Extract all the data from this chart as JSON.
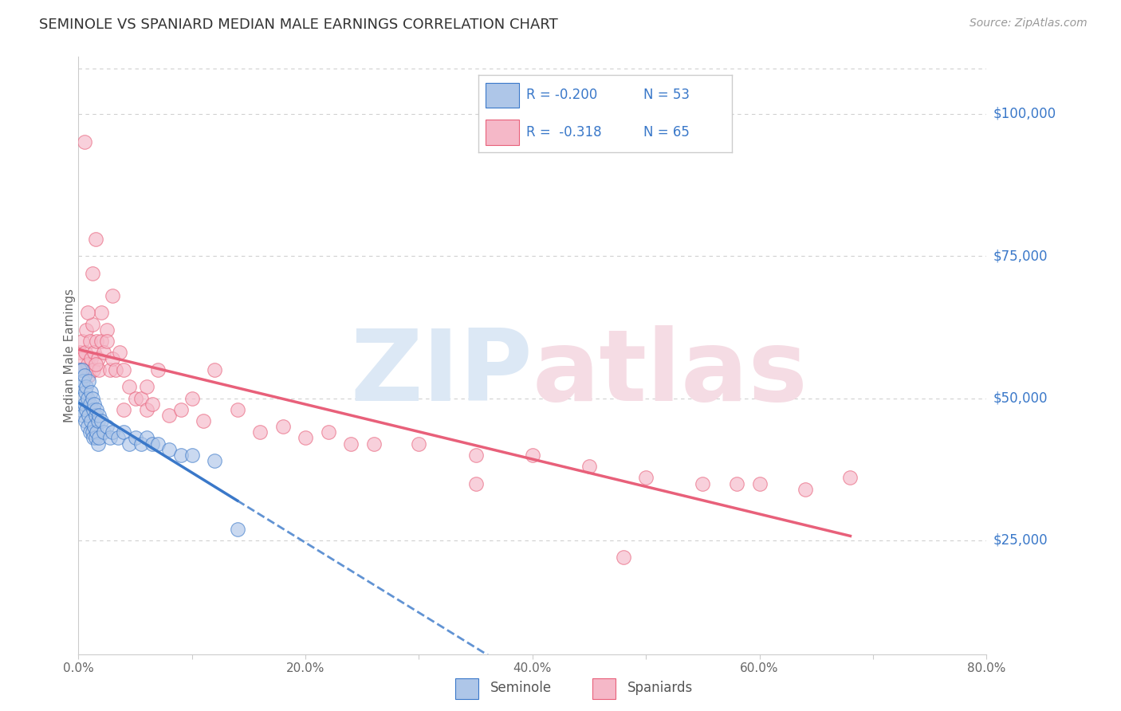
{
  "title": "SEMINOLE VS SPANIARD MEDIAN MALE EARNINGS CORRELATION CHART",
  "source": "Source: ZipAtlas.com",
  "ylabel": "Median Male Earnings",
  "ytick_labels": [
    "$25,000",
    "$50,000",
    "$75,000",
    "$100,000"
  ],
  "ytick_values": [
    25000,
    50000,
    75000,
    100000
  ],
  "ylim": [
    5000,
    110000
  ],
  "xlim": [
    0.0,
    0.8
  ],
  "seminole_color": "#aec6e8",
  "spaniard_color": "#f5b8c8",
  "seminole_line_color": "#3a78c9",
  "spaniard_line_color": "#e8607a",
  "grid_color": "#d0d0d0",
  "watermark_zip_color": "#dce8f5",
  "watermark_atlas_color": "#f5dce4",
  "seminole_x": [
    0.001,
    0.002,
    0.002,
    0.003,
    0.003,
    0.004,
    0.004,
    0.005,
    0.005,
    0.006,
    0.006,
    0.007,
    0.007,
    0.008,
    0.008,
    0.009,
    0.009,
    0.01,
    0.01,
    0.011,
    0.011,
    0.012,
    0.012,
    0.013,
    0.013,
    0.014,
    0.014,
    0.015,
    0.015,
    0.016,
    0.016,
    0.017,
    0.017,
    0.018,
    0.018,
    0.02,
    0.022,
    0.025,
    0.028,
    0.03,
    0.035,
    0.04,
    0.045,
    0.05,
    0.055,
    0.06,
    0.065,
    0.07,
    0.08,
    0.09,
    0.1,
    0.12,
    0.14
  ],
  "seminole_y": [
    55000,
    52000,
    48000,
    55000,
    50000,
    53000,
    47000,
    54000,
    49000,
    51000,
    46000,
    52000,
    48000,
    50000,
    45000,
    53000,
    47000,
    49000,
    44000,
    51000,
    46000,
    50000,
    44000,
    48000,
    43000,
    49000,
    45000,
    47000,
    43000,
    48000,
    44000,
    46000,
    42000,
    47000,
    43000,
    46000,
    44000,
    45000,
    43000,
    44000,
    43000,
    44000,
    42000,
    43000,
    42000,
    43000,
    42000,
    42000,
    41000,
    40000,
    40000,
    39000,
    27000
  ],
  "spaniard_x": [
    0.001,
    0.002,
    0.003,
    0.003,
    0.004,
    0.005,
    0.006,
    0.007,
    0.008,
    0.009,
    0.01,
    0.011,
    0.012,
    0.013,
    0.014,
    0.015,
    0.016,
    0.017,
    0.018,
    0.02,
    0.022,
    0.025,
    0.028,
    0.03,
    0.033,
    0.036,
    0.04,
    0.045,
    0.05,
    0.055,
    0.06,
    0.065,
    0.07,
    0.08,
    0.09,
    0.1,
    0.11,
    0.12,
    0.14,
    0.16,
    0.18,
    0.2,
    0.22,
    0.24,
    0.26,
    0.3,
    0.35,
    0.4,
    0.45,
    0.5,
    0.55,
    0.6,
    0.64,
    0.68,
    0.02,
    0.025,
    0.03,
    0.012,
    0.008,
    0.015,
    0.04,
    0.06,
    0.35,
    0.58,
    0.48
  ],
  "spaniard_y": [
    58000,
    55000,
    60000,
    57000,
    55000,
    95000,
    58000,
    62000,
    56000,
    54000,
    60000,
    57000,
    63000,
    55000,
    58000,
    78000,
    60000,
    57000,
    55000,
    60000,
    58000,
    62000,
    55000,
    57000,
    55000,
    58000,
    55000,
    52000,
    50000,
    50000,
    48000,
    49000,
    55000,
    47000,
    48000,
    50000,
    46000,
    55000,
    48000,
    44000,
    45000,
    43000,
    44000,
    42000,
    42000,
    42000,
    40000,
    40000,
    38000,
    36000,
    35000,
    35000,
    34000,
    36000,
    65000,
    60000,
    68000,
    72000,
    65000,
    56000,
    48000,
    52000,
    35000,
    35000,
    22000
  ],
  "legend_R_seminole": "R = -0.200",
  "legend_N_seminole": "N = 53",
  "legend_R_spaniard": "R =  -0.318",
  "legend_N_spaniard": "N = 65"
}
